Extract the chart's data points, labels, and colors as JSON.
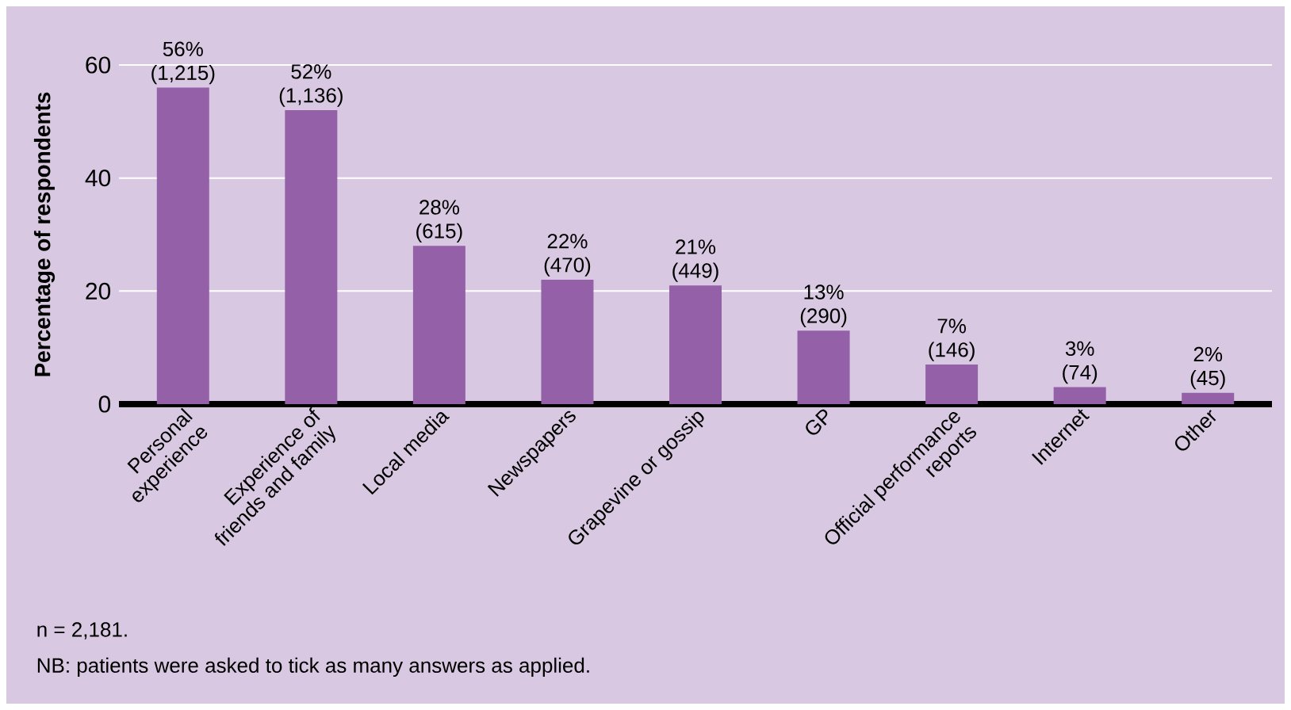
{
  "chart_data": {
    "type": "bar",
    "ylabel": "Percentage of respondents",
    "categories": [
      "Personal experience",
      "Experience of friends and family",
      "Local media",
      "Newspapers",
      "Grapevine or gossip",
      "GP",
      "Official performance reports",
      "Internet",
      "Other"
    ],
    "values": [
      56,
      52,
      28,
      22,
      21,
      13,
      7,
      3,
      2
    ],
    "value_labels": [
      "56% (1,215)",
      "52% (1,136)",
      "28% (615)",
      "22% (470)",
      "21% (449)",
      "13% (290)",
      "7% (146)",
      "3% (74)",
      "2% (45)"
    ],
    "color": "#9460a8",
    "ylim": [
      0,
      60
    ],
    "yticks": [
      0,
      20,
      40,
      60
    ],
    "grid": "y",
    "annotations": [
      "n = 2,181.",
      "NB: patients were asked to tick as many answers as applied."
    ]
  }
}
